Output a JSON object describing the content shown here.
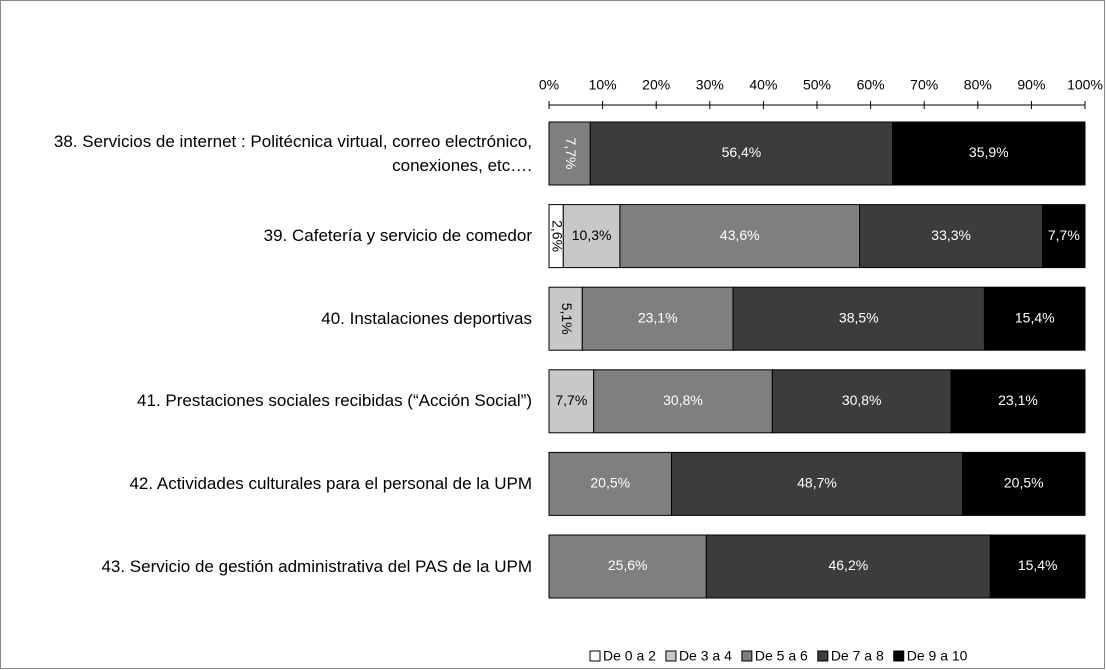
{
  "chart_data": {
    "type": "bar",
    "orientation": "horizontal",
    "stack": "percent",
    "categories": [
      "38. Servicios de internet : Politécnica virtual, correo electrónico, conexiones, etc….",
      "39. Cafetería y servicio de comedor",
      "40. Instalaciones deportivas",
      "41. Prestaciones sociales recibidas (“Acción Social”)",
      "42. Actividades culturales para el personal de la UPM",
      "43.  Servicio de gestión administrativa del PAS de la UPM"
    ],
    "series": [
      {
        "name": "De 0 a 2",
        "color": "#ffffff",
        "values": [
          0,
          2.6,
          0,
          0,
          0,
          0
        ],
        "value_labels": [
          null,
          "2,6%",
          null,
          null,
          null,
          null
        ]
      },
      {
        "name": "De 3 a 4",
        "color": "#c8c8c8",
        "values": [
          0,
          10.3,
          5.1,
          7.7,
          0,
          0
        ],
        "value_labels": [
          null,
          "10,3%",
          "5,1%",
          "7,7%",
          null,
          null
        ]
      },
      {
        "name": "De 5 a 6",
        "color": "#7f7f7f",
        "values": [
          7.7,
          43.6,
          23.1,
          30.8,
          20.5,
          25.6
        ],
        "value_labels": [
          "7,7%",
          "43,6%",
          "23,1%",
          "30,8%",
          "20,5%",
          "25,6%"
        ]
      },
      {
        "name": "De 7 a 8",
        "color": "#3c3c3c",
        "values": [
          56.4,
          33.3,
          38.5,
          30.8,
          48.7,
          46.2
        ],
        "value_labels": [
          "56,4%",
          "33,3%",
          "38,5%",
          "30,8%",
          "48,7%",
          "46,2%"
        ]
      },
      {
        "name": "De 9 a 10",
        "color": "#000000",
        "values": [
          35.9,
          7.7,
          15.4,
          23.1,
          20.5,
          15.4
        ],
        "value_labels": [
          "35,9%",
          "7,7%",
          "15,4%",
          "23,1%",
          "20,5%",
          "15,4%"
        ]
      }
    ],
    "xlim": [
      0,
      100
    ],
    "xticks": [
      {
        "value": 0,
        "label": "0%"
      },
      {
        "value": 10,
        "label": "10%"
      },
      {
        "value": 20,
        "label": "20%"
      },
      {
        "value": 30,
        "label": "30%"
      },
      {
        "value": 40,
        "label": "40%"
      },
      {
        "value": 50,
        "label": "50%"
      },
      {
        "value": 60,
        "label": "60%"
      },
      {
        "value": 70,
        "label": "70%"
      },
      {
        "value": 80,
        "label": "80%"
      },
      {
        "value": 90,
        "label": "90%"
      },
      {
        "value": 100,
        "label": "100%"
      }
    ],
    "legend": "bottom"
  }
}
